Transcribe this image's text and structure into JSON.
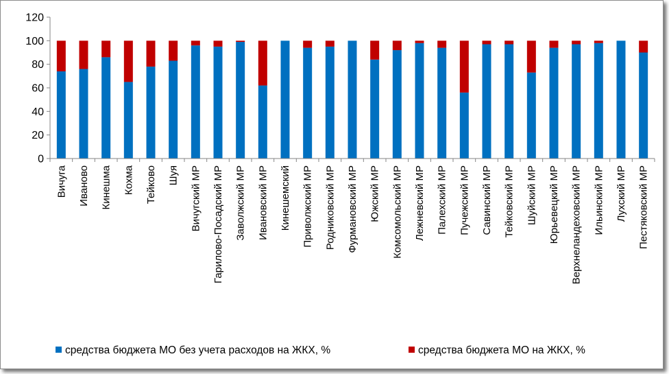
{
  "chart_data": {
    "type": "bar",
    "stacked": true,
    "categories": [
      "Вичуга",
      "Иваново",
      "Кинешма",
      "Кохма",
      "Тейково",
      "Шуя",
      "Вичугский МР",
      "Гарилово-Посадский МР",
      "Заволжский МР",
      "Ивановский МР",
      "Кинешемский",
      "Приволжский МР",
      "Родниковский МР",
      "Фурмановский МР",
      "Южский МР",
      "Комсомольский МР",
      "Лежневский МР",
      "Палехский МР",
      "Пучежский МР",
      "Савинский МР",
      "Тейковский МР",
      "Шуйский МР",
      "Юрьевецкий МР",
      "Верхнеландеховский МР",
      "Ильинский МР",
      "Лухский МР",
      "Пестяковский МР"
    ],
    "series": [
      {
        "name": "средства бюджета МО без учета расходов на ЖКХ, %",
        "color": "#0070c0",
        "values": [
          74,
          76,
          86,
          65,
          78,
          83,
          96,
          95,
          99,
          62,
          100,
          94,
          95,
          100,
          84,
          92,
          98,
          94,
          56,
          97,
          97,
          73,
          94,
          97,
          98,
          100,
          90
        ]
      },
      {
        "name": "средства бюджета МО на ЖКХ, %",
        "color": "#c00000",
        "values": [
          26,
          24,
          14,
          35,
          22,
          17,
          4,
          5,
          1,
          38,
          0,
          6,
          5,
          0,
          16,
          8,
          2,
          6,
          44,
          3,
          3,
          27,
          6,
          3,
          2,
          0,
          10
        ]
      }
    ],
    "yticks": [
      "0",
      "20",
      "40",
      "60",
      "80",
      "100",
      "120"
    ],
    "ylim": [
      0,
      120
    ],
    "grid": false,
    "legend_position": "bottom"
  }
}
